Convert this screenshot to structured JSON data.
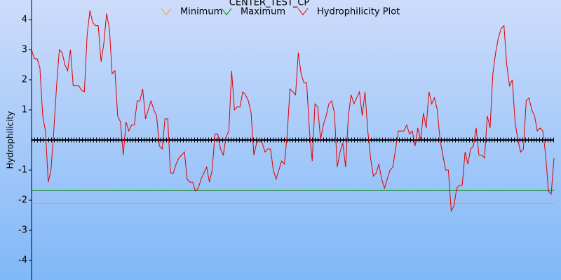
{
  "chart_data": {
    "type": "line",
    "title": "CENTER_TEST_CP",
    "ylabel": "Hydrophilicity",
    "ylim": [
      -4.65,
      4.65
    ],
    "yticks": [
      -4,
      -3,
      -2,
      -1,
      1,
      2,
      3,
      4
    ],
    "series": [
      {
        "name": "Minimum",
        "color": "#e8a030",
        "value": -2.1
      },
      {
        "name": "Maximum",
        "color": "#008000",
        "value": -1.68
      },
      {
        "name": "Hydrophilicity Plot",
        "color": "#e00000",
        "values": [
          3.0,
          2.7,
          2.7,
          2.4,
          0.8,
          0.3,
          -1.4,
          -1.0,
          0.3,
          1.8,
          3.0,
          2.9,
          2.5,
          2.3,
          3.0,
          1.8,
          1.8,
          1.8,
          1.65,
          1.6,
          3.5,
          4.3,
          3.9,
          3.8,
          3.8,
          2.6,
          3.2,
          4.2,
          3.7,
          2.2,
          2.3,
          0.8,
          0.6,
          -0.5,
          0.6,
          0.3,
          0.5,
          0.5,
          1.3,
          1.3,
          1.7,
          0.7,
          1.0,
          1.3,
          1.0,
          0.8,
          -0.2,
          -0.3,
          0.7,
          0.7,
          -1.1,
          -1.1,
          -0.8,
          -0.6,
          -0.5,
          -0.4,
          -1.3,
          -1.4,
          -1.4,
          -1.7,
          -1.6,
          -1.3,
          -1.1,
          -0.9,
          -1.4,
          -1.0,
          0.2,
          0.2,
          -0.3,
          -0.5,
          0.1,
          0.3,
          2.3,
          1.0,
          1.1,
          1.1,
          1.6,
          1.5,
          1.3,
          0.9,
          -0.5,
          -0.1,
          0.0,
          -0.1,
          -0.4,
          -0.3,
          -0.3,
          -1.0,
          -1.3,
          -1.0,
          -0.7,
          -0.8,
          0.2,
          1.7,
          1.6,
          1.5,
          2.9,
          2.2,
          1.9,
          1.9,
          0.3,
          -0.7,
          1.2,
          1.1,
          0.0,
          0.5,
          0.8,
          1.2,
          1.3,
          0.9,
          -0.9,
          -0.4,
          -0.1,
          -0.9,
          0.8,
          1.5,
          1.2,
          1.4,
          1.6,
          0.8,
          1.6,
          0.3,
          -0.6,
          -1.2,
          -1.1,
          -0.8,
          -1.3,
          -1.6,
          -1.3,
          -1.0,
          -0.9,
          -0.3,
          0.3,
          0.3,
          0.3,
          0.5,
          0.2,
          0.3,
          -0.2,
          0.4,
          0.0,
          0.9,
          0.4,
          1.6,
          1.2,
          1.4,
          1.0,
          0.0,
          -0.5,
          -1.0,
          -1.0,
          -2.35,
          -2.2,
          -1.6,
          -1.5,
          -1.5,
          -0.4,
          -0.8,
          -0.3,
          -0.2,
          0.4,
          -0.5,
          -0.5,
          -0.6,
          0.8,
          0.4,
          2.2,
          2.9,
          3.4,
          3.7,
          3.8,
          2.5,
          1.8,
          2.0,
          0.6,
          0.0,
          -0.4,
          -0.3,
          1.3,
          1.4,
          1.0,
          0.8,
          0.3,
          0.4,
          0.3,
          -0.5,
          -1.7,
          -1.8,
          -0.6
        ]
      }
    ]
  }
}
